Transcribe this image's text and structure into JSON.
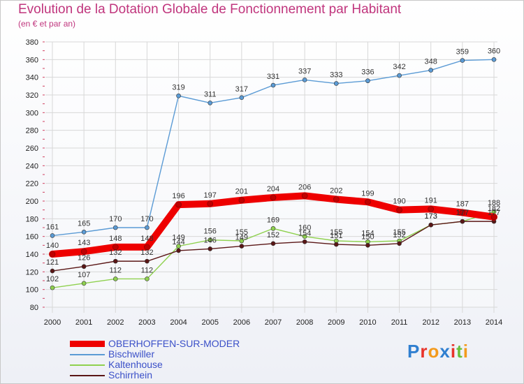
{
  "chart_data": {
    "type": "line",
    "title": "Evolution de la Dotation Globale de Fonctionnement par Habitant",
    "subtitle": "(en € et par an)",
    "xlabel": "",
    "ylabel": "",
    "categories": [
      "2000",
      "2001",
      "2002",
      "2003",
      "2004",
      "2005",
      "2006",
      "2007",
      "2008",
      "2009",
      "2010",
      "2011",
      "2012",
      "2013",
      "2014"
    ],
    "ylim": [
      80,
      380
    ],
    "yticks": [
      80,
      100,
      120,
      140,
      160,
      180,
      200,
      220,
      240,
      260,
      280,
      300,
      320,
      340,
      360,
      380
    ],
    "grid": true,
    "legend_position": "bottom-left",
    "series": [
      {
        "name": "Bischwiller",
        "color": "#5b9bd5",
        "labeled": true,
        "values": [
          161,
          165,
          170,
          170,
          319,
          311,
          317,
          331,
          337,
          333,
          336,
          342,
          348,
          359,
          360
        ]
      },
      {
        "name": "Kaltenhouse",
        "color": "#8fd14f",
        "labeled": true,
        "values": [
          102,
          107,
          112,
          112,
          149,
          156,
          155,
          169,
          160,
          155,
          154,
          155,
          173,
          177,
          188
        ]
      },
      {
        "name": "Schirrhein",
        "color": "#5a1616",
        "labeled": true,
        "values": [
          121,
          126,
          132,
          132,
          144,
          146,
          149,
          152,
          154,
          151,
          150,
          152,
          173,
          177,
          177
        ]
      },
      {
        "name": "OBERHOFFEN-SUR-MODER",
        "color": "#ee0000",
        "labeled": true,
        "values": [
          140,
          143,
          148,
          148,
          196,
          197,
          201,
          204,
          206,
          202,
          199,
          190,
          191,
          187,
          182
        ]
      }
    ]
  },
  "legend": {
    "items": [
      {
        "label": "OBERHOFFEN-SUR-MODER",
        "color": "#ee0000",
        "thickness": 9
      },
      {
        "label": "Bischwiller",
        "color": "#5b9bd5",
        "thickness": 1.5
      },
      {
        "label": "Kaltenhouse",
        "color": "#8fd14f",
        "thickness": 1.5
      },
      {
        "label": "Schirrhein",
        "color": "#5a1616",
        "thickness": 1.5
      }
    ]
  },
  "logo": {
    "text": "Proxiti",
    "letters": [
      {
        "ch": "P",
        "color": "#2f7fd0"
      },
      {
        "ch": "r",
        "color": "#e8332a"
      },
      {
        "ch": "o",
        "color": "#f39a1b"
      },
      {
        "ch": "x",
        "color": "#2f7fd0"
      },
      {
        "ch": "i",
        "color": "#e8332a"
      },
      {
        "ch": "t",
        "color": "#6abf3c"
      },
      {
        "ch": "i",
        "color": "#f39a1b"
      }
    ]
  }
}
